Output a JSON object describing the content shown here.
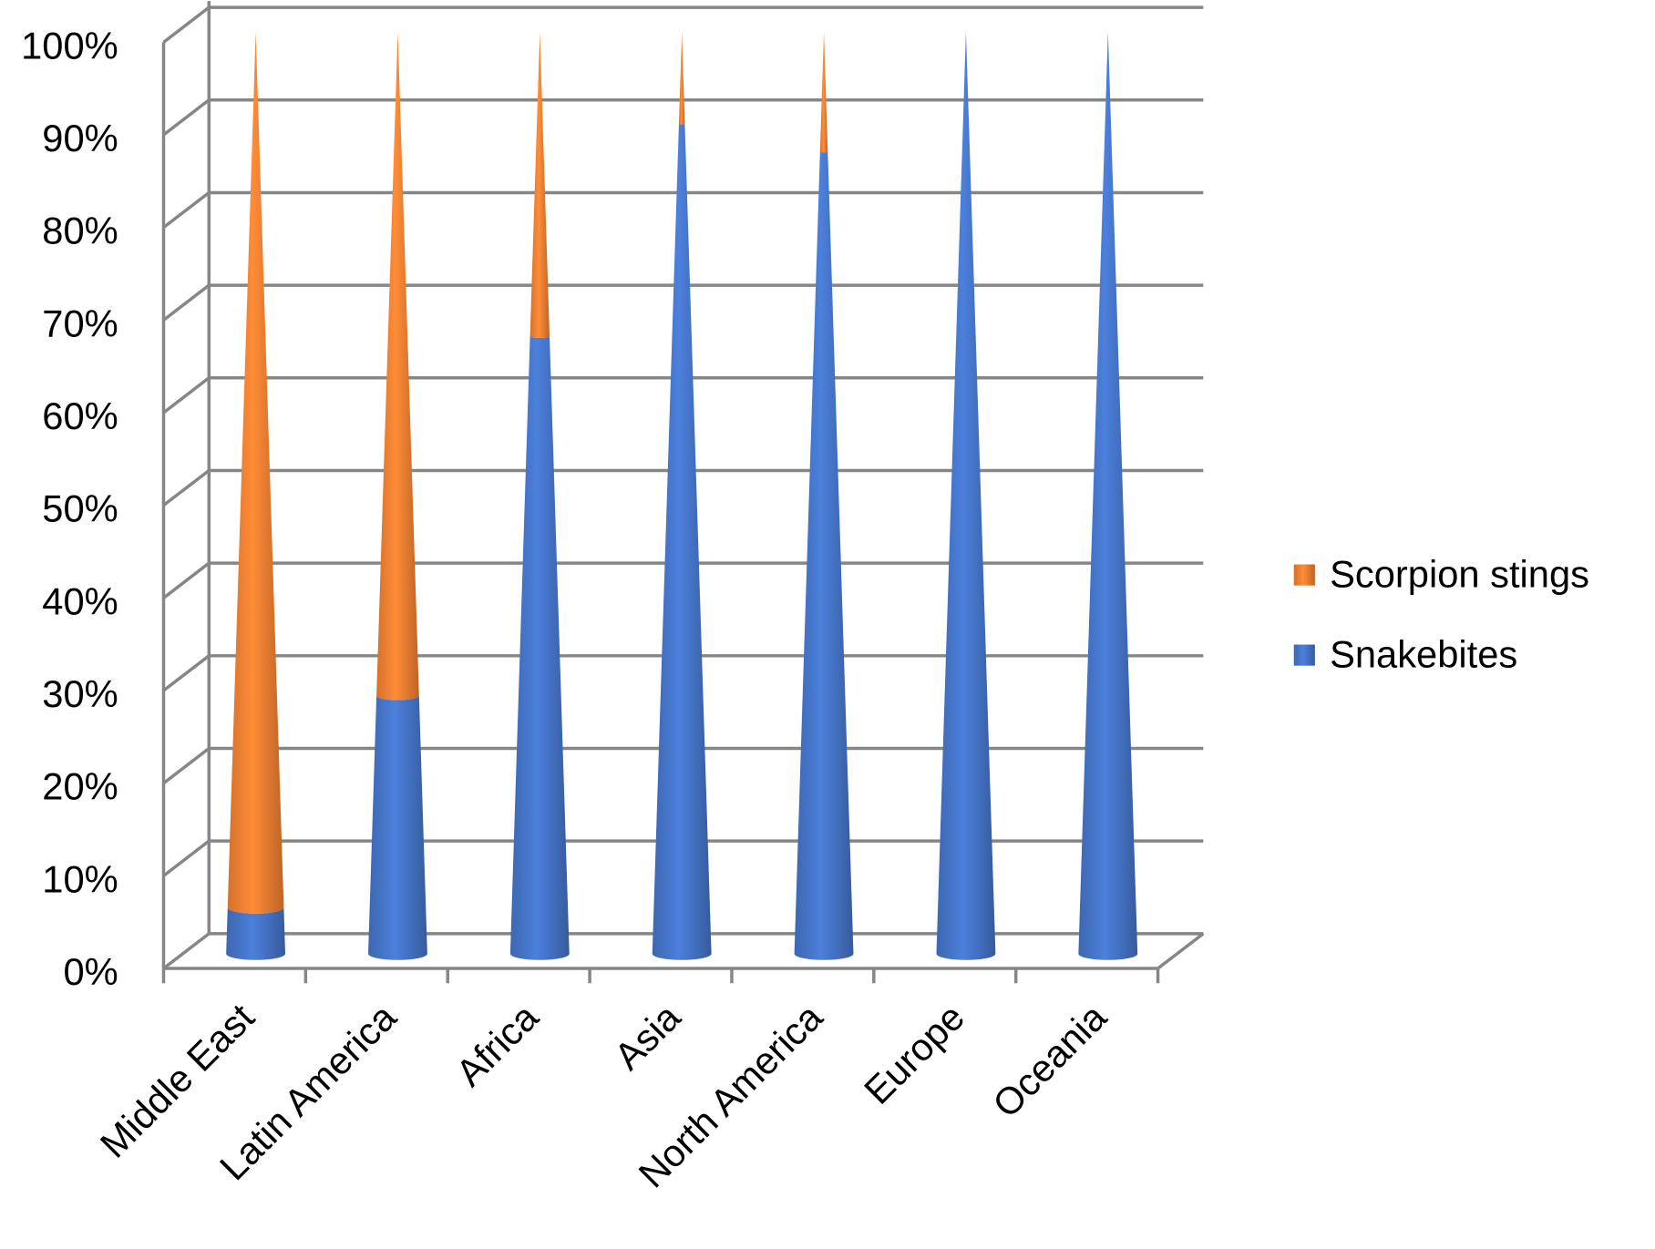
{
  "chart_data": {
    "type": "cone",
    "categories": [
      "Middle East",
      "Latin America",
      "Africa",
      "Asia",
      "North America",
      "Europe",
      "Oceania"
    ],
    "series": [
      {
        "name": "Snakebites",
        "color": "#4472c4",
        "values": [
          5,
          28,
          67,
          90,
          87,
          100,
          100
        ]
      },
      {
        "name": "Scorpion stings",
        "color": "#ed7d31",
        "values": [
          95,
          72,
          33,
          10,
          13,
          0,
          0
        ]
      }
    ],
    "ylim": [
      0,
      100
    ],
    "yticks": [
      {
        "value": 0,
        "label": "0%"
      },
      {
        "value": 10,
        "label": "10%"
      },
      {
        "value": 20,
        "label": "20%"
      },
      {
        "value": 30,
        "label": "30%"
      },
      {
        "value": 40,
        "label": "40%"
      },
      {
        "value": 50,
        "label": "50%"
      },
      {
        "value": 60,
        "label": "60%"
      },
      {
        "value": 70,
        "label": "70%"
      },
      {
        "value": 80,
        "label": "80%"
      },
      {
        "value": 90,
        "label": "90%"
      },
      {
        "value": 100,
        "label": "100%"
      }
    ],
    "grid": true,
    "legend": "right"
  }
}
